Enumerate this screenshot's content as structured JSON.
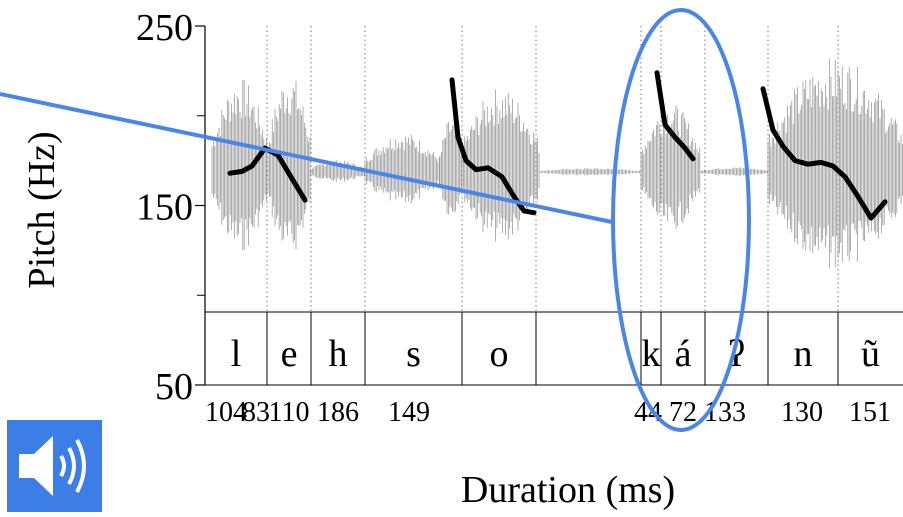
{
  "chart_data": {
    "type": "line",
    "ylabel": "Pitch (Hz)",
    "xlabel": "Duration (ms)",
    "ylim": [
      50,
      250
    ],
    "y_ticks": [
      "250",
      "150",
      "50"
    ],
    "y_tick_values": [
      250,
      150,
      50
    ],
    "segments": [
      {
        "label": "l",
        "duration": "104"
      },
      {
        "label": "e",
        "duration": "83"
      },
      {
        "label": "h",
        "duration": "110"
      },
      {
        "label": "s",
        "duration": "186"
      },
      {
        "label": "o",
        "duration": "149"
      },
      {
        "label": "",
        "duration": ""
      },
      {
        "label": "k",
        "duration": "44"
      },
      {
        "label": "á",
        "duration": "72"
      },
      {
        "label": "ʔ",
        "duration": "133"
      },
      {
        "label": "n",
        "duration": "130"
      },
      {
        "label": "ũ",
        "duration": "151"
      }
    ],
    "series": [
      {
        "values": [
          [
            0,
            168
          ],
          [
            12,
            169
          ],
          [
            22,
            172
          ],
          [
            35,
            182
          ],
          [
            48,
            178
          ],
          [
            62,
            165
          ],
          [
            75,
            153
          ]
        ]
      },
      {
        "values": [
          [
            0,
            220
          ],
          [
            6,
            188
          ],
          [
            14,
            175
          ],
          [
            24,
            170
          ],
          [
            36,
            171
          ],
          [
            50,
            166
          ],
          [
            62,
            155
          ],
          [
            72,
            147
          ],
          [
            82,
            146
          ]
        ]
      },
      {
        "values": [
          [
            0,
            224
          ],
          [
            8,
            195
          ],
          [
            18,
            188
          ],
          [
            28,
            182
          ],
          [
            36,
            176
          ]
        ]
      },
      {
        "values": [
          [
            0,
            215
          ],
          [
            10,
            192
          ],
          [
            20,
            183
          ],
          [
            32,
            175
          ],
          [
            45,
            173
          ],
          [
            58,
            174
          ],
          [
            70,
            172
          ],
          [
            82,
            166
          ],
          [
            95,
            155
          ],
          [
            108,
            143
          ],
          [
            122,
            152
          ]
        ]
      }
    ],
    "colors": {
      "pitch_line": "#000000",
      "waveform": "#8c8c8c",
      "annotation": "#4a86e8"
    },
    "annotation": "ellipse highlighting the segments k and á"
  },
  "audio": {
    "icon": "speaker-icon",
    "color": "#3d7ee6"
  }
}
